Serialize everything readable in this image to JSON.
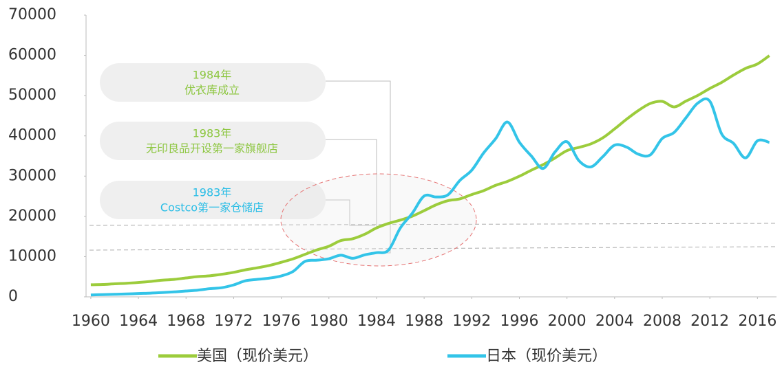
{
  "chart_data": {
    "type": "line",
    "x": [
      1960,
      1961,
      1962,
      1963,
      1964,
      1965,
      1966,
      1967,
      1968,
      1969,
      1970,
      1971,
      1972,
      1973,
      1974,
      1975,
      1976,
      1977,
      1978,
      1979,
      1980,
      1981,
      1982,
      1983,
      1984,
      1985,
      1986,
      1987,
      1988,
      1989,
      1990,
      1991,
      1992,
      1993,
      1994,
      1995,
      1996,
      1997,
      1998,
      1999,
      2000,
      2001,
      2002,
      2003,
      2004,
      2005,
      2006,
      2007,
      2008,
      2009,
      2010,
      2011,
      2012,
      2013,
      2014,
      2015,
      2016,
      2017
    ],
    "series": [
      {
        "name": "美国（现价美元）",
        "color": "#9ccc3c",
        "values": [
          3007,
          3067,
          3244,
          3375,
          3574,
          3828,
          4146,
          4336,
          4696,
          5032,
          5234,
          5609,
          6094,
          6726,
          7226,
          7801,
          8592,
          9453,
          10565,
          11674,
          12575,
          13976,
          14434,
          15544,
          17121,
          18237,
          19071,
          20039,
          21417,
          22857,
          23889,
          24342,
          25419,
          26387,
          27695,
          28691,
          29968,
          31459,
          32854,
          34515,
          36330,
          37134,
          37998,
          39490,
          41725,
          44123,
          46302,
          48050,
          48570,
          47195,
          48651,
          50066,
          51784,
          53291,
          55124,
          56763,
          57867,
          59928
        ]
      },
      {
        "name": "日本（现价美元）",
        "color": "#33c4e8",
        "values": [
          479,
          564,
          634,
          718,
          836,
          919,
          1059,
          1229,
          1451,
          1669,
          2038,
          2272,
          2967,
          3997,
          4354,
          4659,
          5198,
          6335,
          8821,
          9105,
          9463,
          10361,
          9578,
          10425,
          10984,
          11585,
          17112,
          20745,
          25052,
          24813,
          25359,
          28925,
          31465,
          35766,
          39269,
          43440,
          38437,
          35022,
          31903,
          36027,
          38532,
          33846,
          32289,
          34808,
          37689,
          37218,
          35434,
          35275,
          39339,
          40855,
          44508,
          48168,
          48603,
          40454,
          38109,
          34524,
          38761,
          38387
        ]
      }
    ],
    "xlim": [
      1959.6,
      2017.6
    ],
    "xticks": [
      1960,
      1964,
      1968,
      1972,
      1976,
      1980,
      1984,
      1988,
      1992,
      1996,
      2000,
      2004,
      2008,
      2012,
      2016
    ],
    "ylim": [
      0,
      70000
    ],
    "yticks": [
      0,
      10000,
      20000,
      30000,
      40000,
      50000,
      60000,
      70000
    ],
    "annotations": [
      {
        "text": [
          "1984年",
          "优衣库成立"
        ],
        "color": "#8cc63f"
      },
      {
        "text": [
          "1983年",
          "无印良品开设第一家旗舰店"
        ],
        "color": "#8cc63f"
      },
      {
        "text": [
          "1983年",
          "Costco第一家仓储店"
        ],
        "color": "#29bde6"
      }
    ]
  }
}
